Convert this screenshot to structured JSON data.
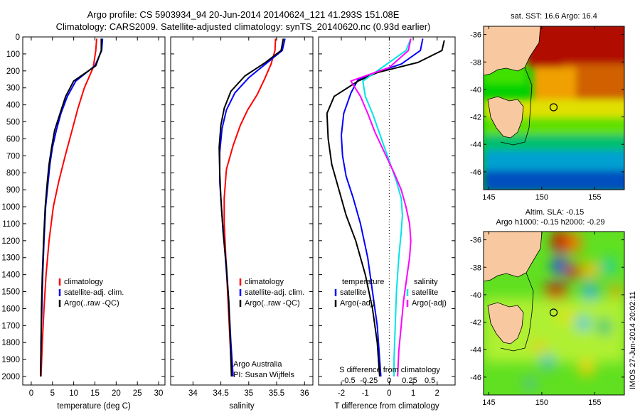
{
  "title": {
    "line1": "Argo profile: CS 5903934_94 20-Jun-2014 20140624_121 41.293S 151.08E",
    "line2": "Climatology: CARS2009. Satellite-adjusted climatology: synTS_20140620.nc (0.93d earlier)"
  },
  "stamp": "IMOS 27-Jun-2014 20:02:11",
  "colors": {
    "climatology": "#ff0000",
    "satellite": "#0000ff",
    "argo": "#000000",
    "sat_salinity": "#00e5e5",
    "argo_adj_salinity": "#ff00ff"
  },
  "chart_data": [
    {
      "type": "line",
      "name": "temperature",
      "xlabel": "temperature (deg C)",
      "ylabel": "",
      "xlim": [
        -2,
        31.5
      ],
      "ylim": [
        0,
        2050
      ],
      "xticks": [
        0,
        5,
        10,
        15,
        20,
        25,
        30
      ],
      "yticks": [
        0,
        100,
        200,
        300,
        400,
        500,
        600,
        700,
        800,
        900,
        1000,
        1100,
        1200,
        1300,
        1400,
        1500,
        1600,
        1700,
        1800,
        1900,
        2000
      ],
      "legend": {
        "entries": [
          "climatology",
          "satellite-adj. clim.",
          "Argo(..raw -QC)"
        ]
      },
      "series": [
        {
          "name": "climatology",
          "color": "#ff0000",
          "points": [
            [
              15.4,
              10
            ],
            [
              15.2,
              80
            ],
            [
              14.6,
              180
            ],
            [
              12.5,
              300
            ],
            [
              11,
              420
            ],
            [
              9.5,
              560
            ],
            [
              8,
              700
            ],
            [
              6.5,
              850
            ],
            [
              5.2,
              1000
            ],
            [
              4.2,
              1200
            ],
            [
              3.5,
              1400
            ],
            [
              3,
              1600
            ],
            [
              2.6,
              1800
            ],
            [
              2.3,
              2000
            ]
          ]
        },
        {
          "name": "satellite-adj. clim.",
          "color": "#0000ff",
          "points": [
            [
              16.8,
              10
            ],
            [
              16.6,
              80
            ],
            [
              15,
              170
            ],
            [
              10.5,
              260
            ],
            [
              8.5,
              350
            ],
            [
              7,
              450
            ],
            [
              5.9,
              550
            ],
            [
              5,
              650
            ],
            [
              4.4,
              750
            ],
            [
              4,
              850
            ],
            [
              3.4,
              1000
            ],
            [
              3,
              1200
            ],
            [
              2.7,
              1400
            ],
            [
              2.5,
              1600
            ],
            [
              2.3,
              1800
            ],
            [
              2.2,
              2000
            ]
          ]
        },
        {
          "name": "Argo(..raw -QC)",
          "color": "#000000",
          "points": [
            [
              16.5,
              10
            ],
            [
              16.5,
              80
            ],
            [
              15.2,
              170
            ],
            [
              10,
              260
            ],
            [
              8.1,
              350
            ],
            [
              6.8,
              450
            ],
            [
              5.5,
              550
            ],
            [
              4.8,
              650
            ],
            [
              4.2,
              750
            ],
            [
              3.8,
              850
            ],
            [
              3.3,
              1000
            ],
            [
              2.9,
              1200
            ],
            [
              2.6,
              1400
            ],
            [
              2.4,
              1600
            ],
            [
              2.3,
              1800
            ],
            [
              2.2,
              2000
            ]
          ]
        }
      ]
    },
    {
      "type": "line",
      "name": "salinity",
      "xlabel": "salinity",
      "xlim": [
        33.6,
        36.15
      ],
      "ylim": [
        0,
        2050
      ],
      "xticks": [
        34,
        34.5,
        35,
        35.5,
        36
      ],
      "legend": {
        "entries": [
          "climatology",
          "satellite-adj. clim.",
          "Argo(..raw -QC)"
        ]
      },
      "annotation": [
        "Argo Australia",
        "PI: Susan Wijffels"
      ],
      "series": [
        {
          "name": "climatology",
          "color": "#ff0000",
          "points": [
            [
              35.48,
              10
            ],
            [
              35.47,
              80
            ],
            [
              35.4,
              160
            ],
            [
              35.28,
              250
            ],
            [
              35.15,
              340
            ],
            [
              34.98,
              430
            ],
            [
              34.85,
              520
            ],
            [
              34.72,
              640
            ],
            [
              34.6,
              780
            ],
            [
              34.56,
              950
            ],
            [
              34.56,
              1100
            ],
            [
              34.59,
              1300
            ],
            [
              34.62,
              1500
            ],
            [
              34.65,
              1700
            ],
            [
              34.68,
              1900
            ],
            [
              34.7,
              2000
            ]
          ]
        },
        {
          "name": "satellite-adj. clim.",
          "color": "#0000ff",
          "points": [
            [
              35.65,
              10
            ],
            [
              35.6,
              80
            ],
            [
              35.3,
              160
            ],
            [
              35,
              240
            ],
            [
              34.75,
              330
            ],
            [
              34.6,
              430
            ],
            [
              34.52,
              540
            ],
            [
              34.48,
              680
            ],
            [
              34.48,
              850
            ],
            [
              34.52,
              1050
            ],
            [
              34.58,
              1300
            ],
            [
              34.64,
              1550
            ],
            [
              34.68,
              1800
            ],
            [
              34.72,
              2000
            ]
          ]
        },
        {
          "name": "Argo(..raw -QC)",
          "color": "#000000",
          "points": [
            [
              35.62,
              10
            ],
            [
              35.58,
              80
            ],
            [
              35.3,
              150
            ],
            [
              34.93,
              230
            ],
            [
              34.68,
              320
            ],
            [
              34.56,
              420
            ],
            [
              34.5,
              520
            ],
            [
              34.47,
              650
            ],
            [
              34.48,
              800
            ],
            [
              34.5,
              950
            ],
            [
              34.54,
              1150
            ],
            [
              34.6,
              1350
            ],
            [
              34.64,
              1550
            ],
            [
              34.67,
              1800
            ],
            [
              34.69,
              2000
            ]
          ]
        }
      ]
    },
    {
      "type": "line",
      "name": "difference",
      "xlabel": "T difference from climatology",
      "xlabel_top": "S difference from climatology",
      "xlim": [
        -2.95,
        2.75
      ],
      "ylim": [
        0,
        2050
      ],
      "xticks": [
        -2,
        -1,
        0,
        1,
        2
      ],
      "xticks_salinity": [
        -0.5,
        -0.25,
        0,
        0.25,
        0.5
      ],
      "legend": {
        "entries": [
          "temperature",
          "satellite",
          "Argo(-adj)",
          "salinity",
          "satellite",
          "Argo(-adj)"
        ]
      },
      "series": [
        {
          "name": "temperature satellite",
          "color": "#0000ff",
          "points": [
            [
              1.4,
              10
            ],
            [
              1.3,
              80
            ],
            [
              0.5,
              160
            ],
            [
              -0.6,
              210
            ],
            [
              -1.3,
              250
            ],
            [
              -1.6,
              330
            ],
            [
              -1.9,
              450
            ],
            [
              -2.0,
              580
            ],
            [
              -1.95,
              700
            ],
            [
              -1.8,
              820
            ],
            [
              -1.5,
              950
            ],
            [
              -1.2,
              1100
            ],
            [
              -0.9,
              1300
            ],
            [
              -0.7,
              1500
            ],
            [
              -0.5,
              1700
            ],
            [
              -0.4,
              1900
            ],
            [
              -0.35,
              2000
            ]
          ]
        },
        {
          "name": "temperature Argo(-adj)",
          "color": "#000000",
          "points": [
            [
              2.3,
              20
            ],
            [
              2.2,
              80
            ],
            [
              1.2,
              150
            ],
            [
              -0.5,
              210
            ],
            [
              -1.3,
              260
            ],
            [
              -2.3,
              350
            ],
            [
              -2.6,
              450
            ],
            [
              -2.55,
              600
            ],
            [
              -2.4,
              750
            ],
            [
              -2.1,
              900
            ],
            [
              -1.8,
              1050
            ],
            [
              -1.4,
              1200
            ],
            [
              -1.0,
              1400
            ],
            [
              -0.7,
              1600
            ],
            [
              -0.5,
              1800
            ],
            [
              -0.4,
              2000
            ]
          ]
        },
        {
          "name": "salinity satellite",
          "color": "#00e5e5",
          "points": [
            [
              0.9,
              10
            ],
            [
              0.7,
              80
            ],
            [
              -0.3,
              180
            ],
            [
              -1.1,
              260
            ],
            [
              -1.0,
              350
            ],
            [
              -0.7,
              450
            ],
            [
              -0.45,
              550
            ],
            [
              -0.2,
              650
            ],
            [
              0.05,
              750
            ],
            [
              0.3,
              850
            ],
            [
              0.5,
              950
            ],
            [
              0.55,
              1050
            ],
            [
              0.5,
              1150
            ],
            [
              0.4,
              1300
            ],
            [
              0.3,
              1500
            ],
            [
              0.25,
              1700
            ],
            [
              0.2,
              1900
            ],
            [
              0.2,
              2000
            ]
          ]
        },
        {
          "name": "salinity Argo(-adj)",
          "color": "#ff00ff",
          "points": [
            [
              0.9,
              10
            ],
            [
              0.8,
              80
            ],
            [
              0,
              180
            ],
            [
              -1.6,
              260
            ],
            [
              -1.2,
              350
            ],
            [
              -0.9,
              450
            ],
            [
              -0.6,
              560
            ],
            [
              -0.2,
              680
            ],
            [
              0.2,
              800
            ],
            [
              0.5,
              900
            ],
            [
              0.7,
              1000
            ],
            [
              0.85,
              1100
            ],
            [
              0.9,
              1200
            ],
            [
              0.85,
              1300
            ],
            [
              0.75,
              1400
            ],
            [
              0.6,
              1550
            ],
            [
              0.5,
              1700
            ],
            [
              0.4,
              1850
            ],
            [
              0.35,
              2000
            ]
          ]
        }
      ]
    }
  ],
  "maps": {
    "sst": {
      "title": "sat. SST: 16.6 Argo: 16.4",
      "lat_ticks": [
        "-36",
        "-38",
        "-40",
        "-42",
        "-44",
        "-46"
      ],
      "lon_ticks": [
        "145",
        "150",
        "155"
      ],
      "argo_position": {
        "lon": 151.08,
        "lat": -41.293
      }
    },
    "sla": {
      "title": "Altim. SLA: -0.15",
      "subtitle": "Argo h1000: -0.15 h2000: -0.29",
      "lat_ticks": [
        "-36",
        "-38",
        "-40",
        "-42",
        "-44",
        "-46"
      ],
      "lon_ticks": [
        "145",
        "150",
        "155"
      ],
      "argo_position": {
        "lon": 151.08,
        "lat": -41.293
      }
    }
  }
}
